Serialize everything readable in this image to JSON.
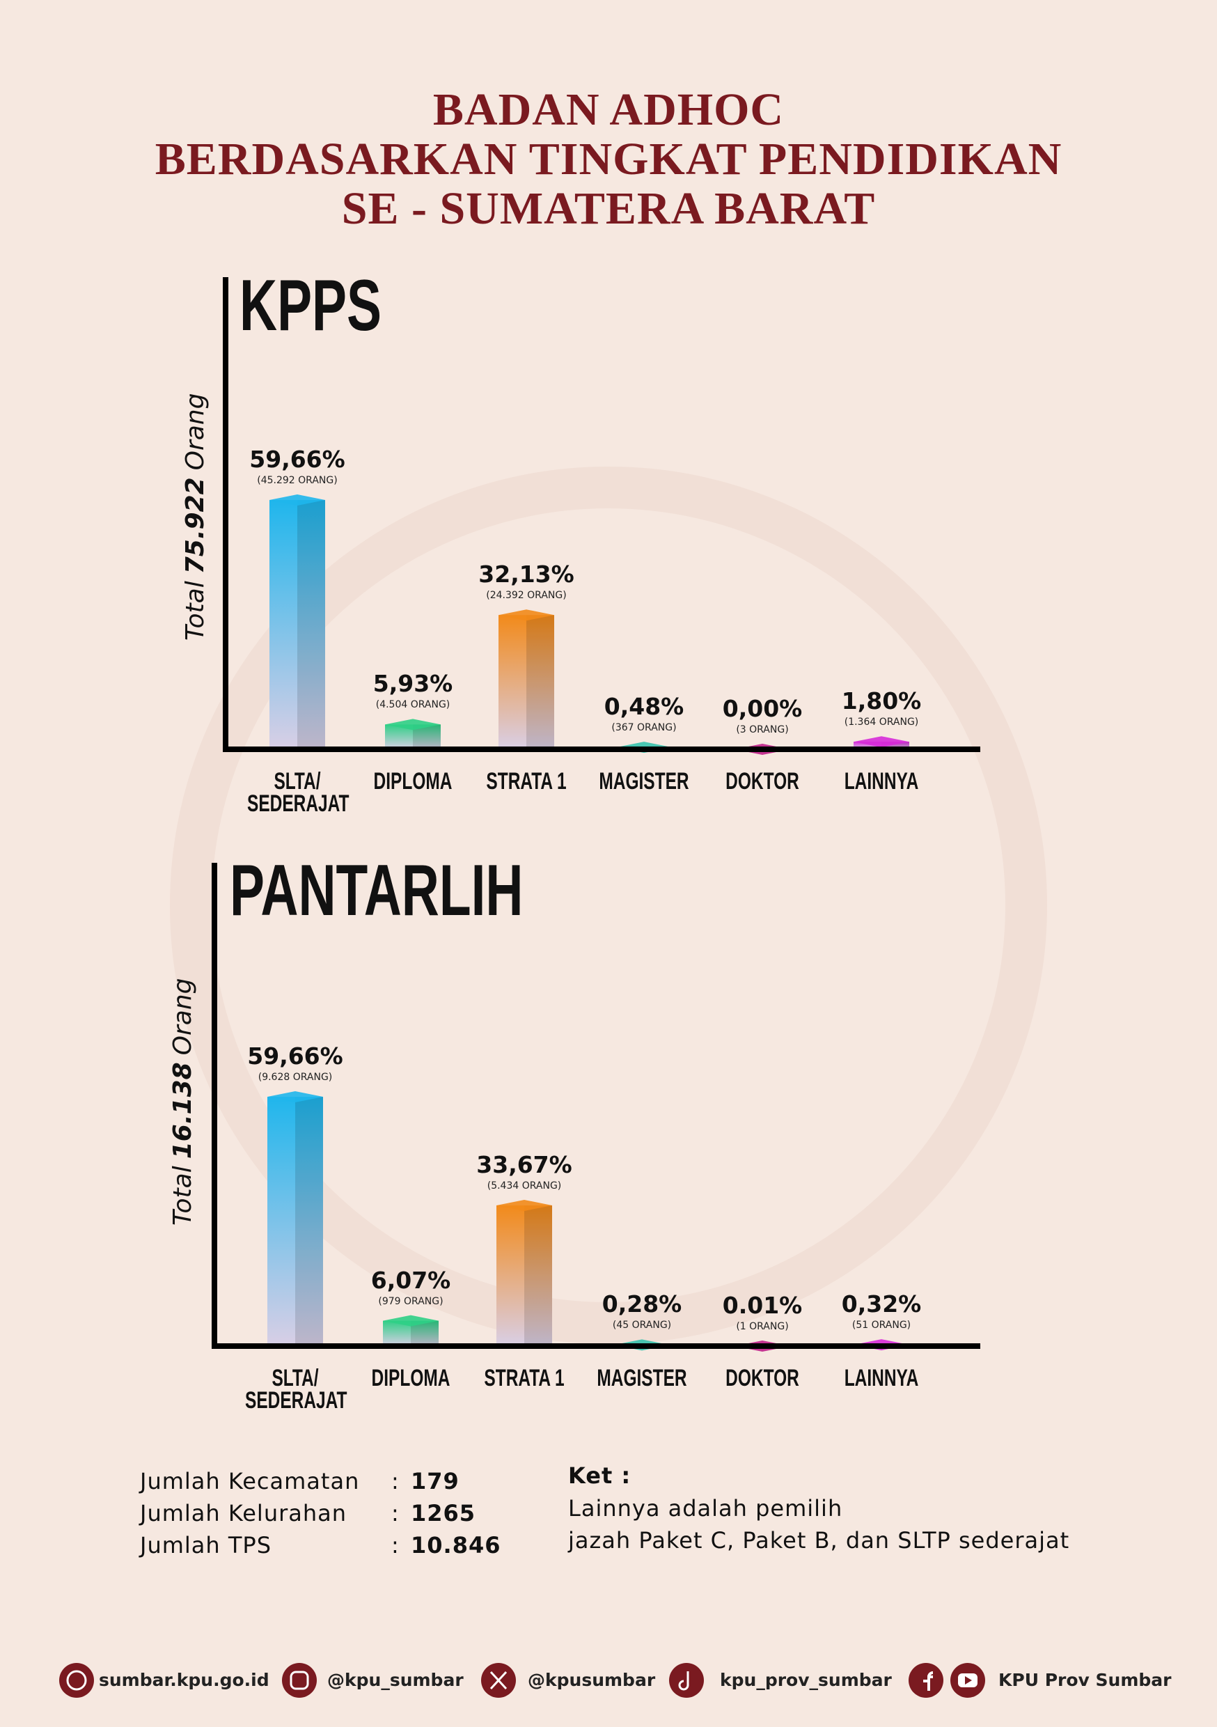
{
  "header": {
    "title_lines": [
      "BADAN ADHOC",
      "BERDASARKAN TINGKAT PENDIDIKAN",
      "SE - SUMATERA BARAT"
    ]
  },
  "chart_data": [
    {
      "type": "bar",
      "title": "KPPS",
      "ylabel": {
        "pre": "Total",
        "total": "75.922",
        "post": "Orang"
      },
      "categories": [
        "SLTA/ SEDERAJAT",
        "DIPLOMA",
        "STRATA 1",
        "MAGISTER",
        "DOKTOR",
        "LAINNYA"
      ],
      "values": [
        59.66,
        5.93,
        32.13,
        0.48,
        0.0,
        1.8
      ],
      "value_labels": [
        "59,66%",
        "5,93%",
        "32,13%",
        "0,48%",
        "0,00%",
        "1,80%"
      ],
      "count_labels": [
        "(45.292 ORANG)",
        "(4.504 ORANG)",
        "(24.392 ORANG)",
        "(367 ORANG)",
        "(3 ORANG)",
        "(1.364 ORANG)"
      ],
      "colors": [
        "#1fb6ec",
        "#2fcf86",
        "#f28a1a",
        "#36c2ad",
        "#c0208a",
        "#d72ad9"
      ],
      "ylim": [
        0,
        100
      ]
    },
    {
      "type": "bar",
      "title": "PANTARLIH",
      "ylabel": {
        "pre": "Total",
        "total": "16.138",
        "post": "Orang"
      },
      "categories": [
        "SLTA/ SEDERAJAT",
        "DIPLOMA",
        "STRATA 1",
        "MAGISTER",
        "DOKTOR",
        "LAINNYA"
      ],
      "values": [
        59.66,
        6.07,
        33.67,
        0.28,
        0.01,
        0.32
      ],
      "value_labels": [
        "59,66%",
        "6,07%",
        "33,67%",
        "0,28%",
        "0.01%",
        "0,32%"
      ],
      "count_labels": [
        "(9.628 ORANG)",
        "(979 ORANG)",
        "(5.434 ORANG)",
        "(45 ORANG)",
        "(1 ORANG)",
        "(51 ORANG)"
      ],
      "colors": [
        "#1fb6ec",
        "#2fcf86",
        "#f28a1a",
        "#36c2ad",
        "#c0208a",
        "#d72ad9"
      ],
      "ylim": [
        0,
        100
      ]
    }
  ],
  "stats": {
    "separator": ":",
    "rows": [
      [
        "Jumlah Kecamatan",
        "179"
      ],
      [
        "Jumlah Kelurahan",
        "1265"
      ],
      [
        "Jumlah TPS",
        "10.846"
      ]
    ]
  },
  "note": {
    "title": "Ket :",
    "lines": [
      "Lainnya adalah pemilih",
      "jazah Paket C, Paket B, dan SLTP sederajat"
    ]
  },
  "footer": {
    "links": [
      "sumbar.kpu.go.id",
      "@kpu_sumbar",
      "@kpusumbar",
      "kpu_prov_sumbar",
      "KPU Prov Sumbar"
    ]
  }
}
